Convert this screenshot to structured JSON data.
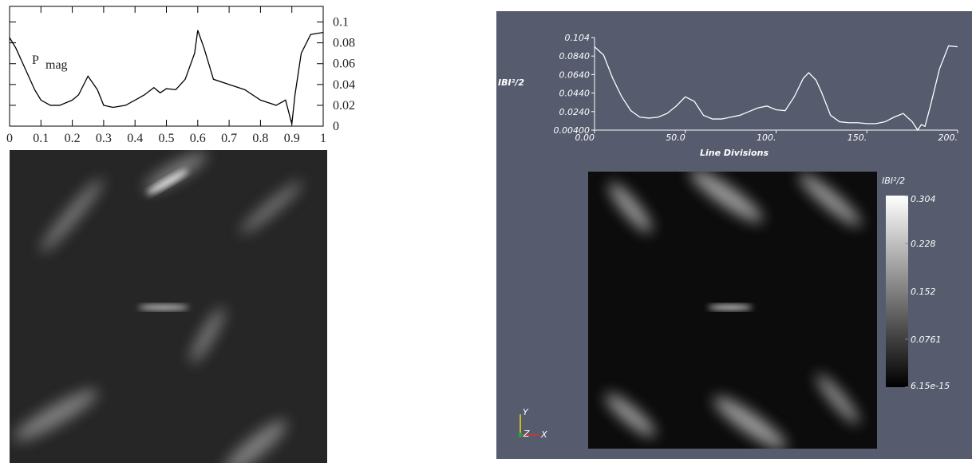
{
  "chart_data": [
    {
      "type": "line",
      "annotation": "P",
      "annotation_sub": "mag",
      "color": "#000000",
      "x": [
        0,
        0.02,
        0.05,
        0.08,
        0.1,
        0.13,
        0.16,
        0.2,
        0.22,
        0.25,
        0.28,
        0.3,
        0.33,
        0.37,
        0.4,
        0.43,
        0.46,
        0.48,
        0.5,
        0.53,
        0.56,
        0.59,
        0.6,
        0.62,
        0.65,
        0.7,
        0.75,
        0.8,
        0.85,
        0.88,
        0.9,
        0.91,
        0.93,
        0.96,
        1
      ],
      "values": [
        0.085,
        0.075,
        0.055,
        0.035,
        0.025,
        0.02,
        0.02,
        0.025,
        0.03,
        0.048,
        0.035,
        0.02,
        0.018,
        0.02,
        0.025,
        0.03,
        0.037,
        0.032,
        0.036,
        0.035,
        0.045,
        0.07,
        0.092,
        0.075,
        0.045,
        0.04,
        0.035,
        0.025,
        0.02,
        0.025,
        0.002,
        0.03,
        0.07,
        0.088,
        0.09
      ],
      "xlim": [
        0,
        1
      ],
      "ylim": [
        0,
        0.115
      ],
      "xticks": [
        0,
        0.1,
        0.2,
        0.3,
        0.4,
        0.5,
        0.6,
        0.7,
        0.8,
        0.9,
        1
      ],
      "yticks": [
        0,
        0.02,
        0.04,
        0.06,
        0.08,
        0.1
      ]
    },
    {
      "type": "line",
      "ylabel": "IBI²/2",
      "xlabel": "Line Divisions",
      "color": "#ffffff",
      "x": [
        0,
        5,
        10,
        15,
        20,
        25,
        30,
        35,
        40,
        45,
        50,
        55,
        60,
        65,
        70,
        75,
        80,
        85,
        90,
        95,
        100,
        105,
        110,
        115,
        118,
        122,
        125,
        130,
        135,
        140,
        145,
        150,
        155,
        160,
        165,
        170,
        175,
        178,
        180,
        182,
        185,
        190,
        195,
        200
      ],
      "values": [
        0.094,
        0.085,
        0.06,
        0.04,
        0.025,
        0.018,
        0.017,
        0.018,
        0.022,
        0.03,
        0.04,
        0.035,
        0.02,
        0.016,
        0.016,
        0.018,
        0.02,
        0.024,
        0.028,
        0.03,
        0.026,
        0.025,
        0.04,
        0.06,
        0.066,
        0.058,
        0.045,
        0.02,
        0.013,
        0.012,
        0.012,
        0.011,
        0.011,
        0.013,
        0.018,
        0.022,
        0.013,
        0.004,
        0.01,
        0.008,
        0.03,
        0.07,
        0.095,
        0.094
      ],
      "xlim": [
        0,
        200
      ],
      "ylim": [
        0.004,
        0.104
      ],
      "xticks": [
        {
          "value": 0,
          "label": "0.00"
        },
        {
          "value": 50,
          "label": "50.0"
        },
        {
          "value": 100,
          "label": "100."
        },
        {
          "value": 150,
          "label": "150."
        },
        {
          "value": 200,
          "label": "200."
        }
      ],
      "yticks": [
        {
          "value": 0.004,
          "label": "0.00400"
        },
        {
          "value": 0.024,
          "label": "0.0240"
        },
        {
          "value": 0.044,
          "label": "0.0440"
        },
        {
          "value": 0.064,
          "label": "0.0640"
        },
        {
          "value": 0.084,
          "label": "0.0840"
        },
        0.104
      ]
    },
    {
      "type": "colorbar",
      "title": "IBI²/2",
      "lim": [
        6.15e-15,
        0.304
      ],
      "ticks": [
        6.15e-15,
        0.0761,
        0.152,
        0.228,
        0.304
      ],
      "orientation_axes": {
        "x": "X",
        "y": "Y",
        "z": "Z"
      }
    }
  ]
}
